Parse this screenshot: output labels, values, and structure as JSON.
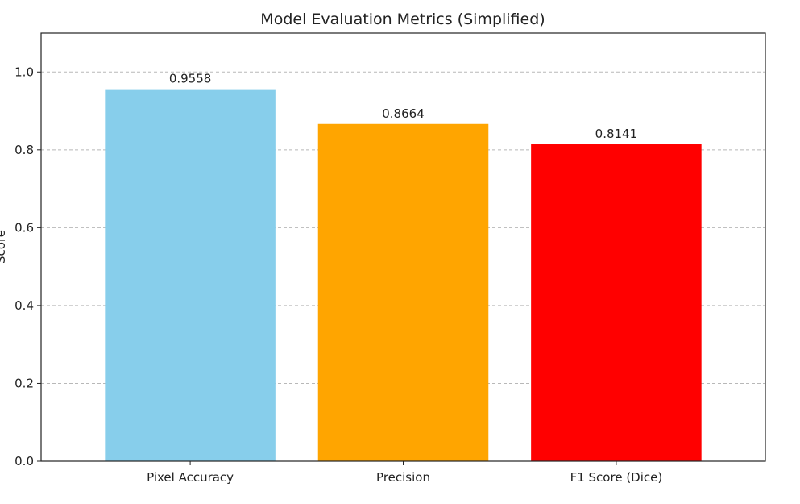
{
  "chart_data": {
    "type": "bar",
    "title": "Model Evaluation Metrics (Simplified)",
    "xlabel": "",
    "ylabel": "Score",
    "categories": [
      "Pixel Accuracy",
      "Precision",
      "F1 Score (Dice)"
    ],
    "values": [
      0.9558,
      0.8664,
      0.8141
    ],
    "value_labels": [
      "0.9558",
      "0.8664",
      "0.8141"
    ],
    "bar_colors": [
      "#87CEEB",
      "#FFA500",
      "#FF0000"
    ],
    "ylim": [
      0,
      1.1
    ],
    "yticks": [
      0.0,
      0.2,
      0.4,
      0.6,
      0.8,
      1.0
    ],
    "ytick_labels": [
      "0.0",
      "0.2",
      "0.4",
      "0.6",
      "0.8",
      "1.0"
    ],
    "grid": "y-dashed"
  }
}
